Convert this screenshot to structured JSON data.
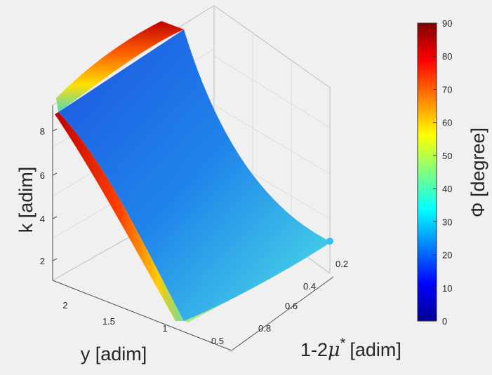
{
  "chart_data": {
    "type": "scatter",
    "subtype": "3d-surface-scatter",
    "x_axis": {
      "label": "y [adim]",
      "ticks": [
        "2",
        "1.5",
        "1",
        "0.5"
      ],
      "range": [
        0.5,
        2.2
      ]
    },
    "y_axis": {
      "label_main": "1-2",
      "label_mu": "μ",
      "label_star": "*",
      "label_unit": "[adim]",
      "ticks": [
        "0.2",
        "0.4",
        "0.6",
        "0.8"
      ],
      "range": [
        0.1,
        0.9
      ]
    },
    "z_axis": {
      "label": "k [adim]",
      "ticks": [
        "8",
        "6",
        "4",
        "2"
      ],
      "range": [
        1,
        9
      ]
    },
    "colorbar": {
      "label": "Φ [degree]",
      "colormap": "jet",
      "ticks": [
        "90",
        "80",
        "70",
        "60",
        "50",
        "40",
        "30",
        "20",
        "10",
        "0"
      ],
      "range": [
        0,
        90
      ]
    },
    "surface_corners": [
      {
        "name": "back-left",
        "y": 2.2,
        "one_minus_2mu": 0.1,
        "k": 9.2
      },
      {
        "name": "front-left",
        "y": 0.95,
        "one_minus_2mu": 0.9,
        "k": 1.1
      },
      {
        "name": "right-tip",
        "y": 0.5,
        "one_minus_2mu": 0.1,
        "k": 3.0
      }
    ],
    "edge_phi": {
      "left_rim": 85,
      "bottom_rim": 45,
      "interior_min": 15,
      "interior_max": 35
    },
    "grid": true
  }
}
